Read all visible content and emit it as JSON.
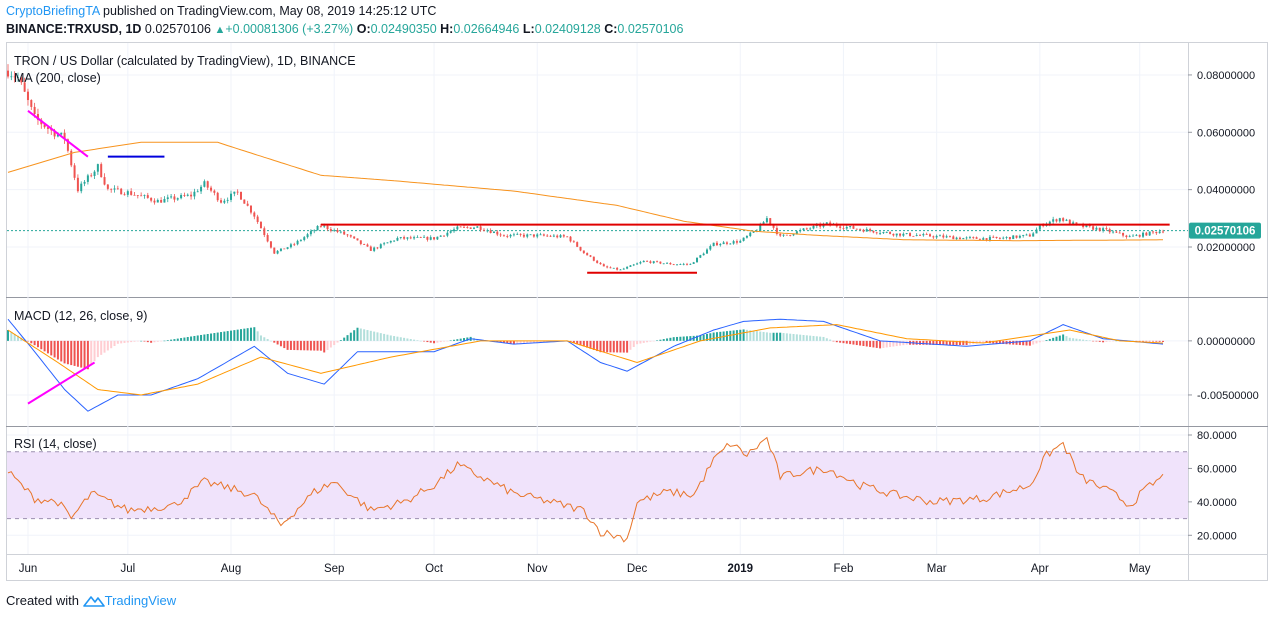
{
  "header": {
    "author": "CryptoBriefingTA",
    "published": "published on TradingView.com, May 08, 2019 14:25:12 UTC",
    "symbol": "BINANCE:TRXUSD, 1D",
    "last": "0.02570106",
    "change": "+0.00081306 (+3.27%)",
    "o_label": "O:",
    "o_value": "0.02490350",
    "h_label": "H:",
    "h_value": "0.02664946",
    "l_label": "L:",
    "l_value": "0.02409128",
    "c_label": "C:",
    "c_value": "0.02570106"
  },
  "footer": {
    "prefix": "Created with",
    "brand": "TradingView"
  },
  "colors": {
    "up": "#26a69a",
    "down": "#ef5350",
    "ma": "#f7931e",
    "macd": "#2962ff",
    "signal": "#ff9800",
    "rsi": "#e8752a",
    "rsi_band": "#f0e3fb",
    "trend_magenta": "#ff00ff",
    "trend_blue": "#0000dd",
    "trend_red": "#e00000",
    "price_label": "#26a69a"
  },
  "chart_data": [
    {
      "type": "candlestick",
      "title": "TRON / US Dollar (calculated by TradingView), 1D, BINANCE",
      "indicator": "MA (200, close)",
      "ylim": [
        0.005,
        0.088
      ],
      "y_ticks": [
        "0.08000000",
        "0.06000000",
        "0.04000000",
        "0.02000000"
      ],
      "x_ticks": [
        "Jun",
        "Jul",
        "Aug",
        "Sep",
        "Oct",
        "Nov",
        "Dec",
        "2019",
        "Feb",
        "Mar",
        "Apr",
        "May"
      ],
      "last_price_label": "0.02570106",
      "date_range": [
        "2018-05-26",
        "2019-05-08"
      ],
      "close_anchors": [
        [
          "2018-05-26",
          0.0815
        ],
        [
          "2018-05-29",
          0.079
        ],
        [
          "2018-06-03",
          0.065
        ],
        [
          "2018-06-08",
          0.0605
        ],
        [
          "2018-06-12",
          0.058
        ],
        [
          "2018-06-16",
          0.04
        ],
        [
          "2018-06-22",
          0.048
        ],
        [
          "2018-06-25",
          0.04
        ],
        [
          "2018-07-01",
          0.039
        ],
        [
          "2018-07-10",
          0.036
        ],
        [
          "2018-07-20",
          0.038
        ],
        [
          "2018-07-24",
          0.042
        ],
        [
          "2018-07-29",
          0.036
        ],
        [
          "2018-08-03",
          0.039
        ],
        [
          "2018-08-08",
          0.031
        ],
        [
          "2018-08-14",
          0.018
        ],
        [
          "2018-08-20",
          0.021
        ],
        [
          "2018-08-28",
          0.0275
        ],
        [
          "2018-09-05",
          0.024
        ],
        [
          "2018-09-12",
          0.019
        ],
        [
          "2018-09-20",
          0.023
        ],
        [
          "2018-10-01",
          0.023
        ],
        [
          "2018-10-08",
          0.0265
        ],
        [
          "2018-10-14",
          0.027
        ],
        [
          "2018-10-22",
          0.024
        ],
        [
          "2018-11-01",
          0.024
        ],
        [
          "2018-11-10",
          0.0235
        ],
        [
          "2018-11-15",
          0.018
        ],
        [
          "2018-11-21",
          0.013
        ],
        [
          "2018-11-26",
          0.012
        ],
        [
          "2018-12-03",
          0.015
        ],
        [
          "2018-12-12",
          0.014
        ],
        [
          "2018-12-17",
          0.014
        ],
        [
          "2018-12-24",
          0.021
        ],
        [
          "2019-01-01",
          0.022
        ],
        [
          "2019-01-06",
          0.026
        ],
        [
          "2019-01-09",
          0.03
        ],
        [
          "2019-01-13",
          0.0235
        ],
        [
          "2019-01-20",
          0.026
        ],
        [
          "2019-01-27",
          0.028
        ],
        [
          "2019-02-07",
          0.026
        ],
        [
          "2019-02-17",
          0.0245
        ],
        [
          "2019-02-25",
          0.024
        ],
        [
          "2019-03-10",
          0.023
        ],
        [
          "2019-03-20",
          0.023
        ],
        [
          "2019-03-29",
          0.024
        ],
        [
          "2019-04-02",
          0.028
        ],
        [
          "2019-04-07",
          0.03
        ],
        [
          "2019-04-12",
          0.0275
        ],
        [
          "2019-04-20",
          0.026
        ],
        [
          "2019-04-28",
          0.0235
        ],
        [
          "2019-05-08",
          0.0257
        ]
      ],
      "ma_anchors": [
        [
          "2018-05-26",
          0.046
        ],
        [
          "2018-06-15",
          0.053
        ],
        [
          "2018-07-05",
          0.0565
        ],
        [
          "2018-07-28",
          0.0565
        ],
        [
          "2018-08-05",
          0.0535
        ],
        [
          "2018-08-28",
          0.045
        ],
        [
          "2018-09-20",
          0.043
        ],
        [
          "2018-10-25",
          0.0395
        ],
        [
          "2018-11-25",
          0.0345
        ],
        [
          "2018-12-15",
          0.029
        ],
        [
          "2019-01-05",
          0.0255
        ],
        [
          "2019-01-25",
          0.024
        ],
        [
          "2019-02-20",
          0.0225
        ],
        [
          "2019-03-25",
          0.0222
        ],
        [
          "2019-05-08",
          0.0225
        ]
      ],
      "drawings": [
        {
          "color": "#ff00ff",
          "from": [
            "2018-06-01",
            0.0675
          ],
          "to": [
            "2018-06-19",
            0.0515
          ]
        },
        {
          "color": "#0000dd",
          "from": [
            "2018-06-25",
            0.0515
          ],
          "to": [
            "2018-07-12",
            0.0515
          ]
        },
        {
          "color": "#e00000",
          "from": [
            "2018-08-28",
            0.0278
          ],
          "to": [
            "2019-05-10",
            0.0278
          ]
        },
        {
          "color": "#e00000",
          "from": [
            "2018-11-16",
            0.011
          ],
          "to": [
            "2018-12-19",
            0.011
          ]
        }
      ]
    },
    {
      "type": "line",
      "title": "MACD (12, 26, close, 9)",
      "ylim": [
        -0.0075,
        0.0035
      ],
      "y_ticks": [
        "0.00000000",
        "-0.00500000"
      ],
      "series": [
        {
          "name": "MACD",
          "anchors": [
            [
              "2018-05-26",
              0.002
            ],
            [
              "2018-06-03",
              -0.001
            ],
            [
              "2018-06-12",
              -0.0045
            ],
            [
              "2018-06-19",
              -0.0065
            ],
            [
              "2018-06-28",
              -0.005
            ],
            [
              "2018-07-08",
              -0.005
            ],
            [
              "2018-07-22",
              -0.0035
            ],
            [
              "2018-08-08",
              -0.0005
            ],
            [
              "2018-08-18",
              -0.003
            ],
            [
              "2018-08-29",
              -0.004
            ],
            [
              "2018-09-08",
              -0.001
            ],
            [
              "2018-09-18",
              -0.001
            ],
            [
              "2018-10-01",
              -0.001
            ],
            [
              "2018-10-12",
              0.0002
            ],
            [
              "2018-10-25",
              -0.0003
            ],
            [
              "2018-11-10",
              0.0
            ],
            [
              "2018-11-20",
              -0.002
            ],
            [
              "2018-11-28",
              -0.0028
            ],
            [
              "2018-12-12",
              -0.0005
            ],
            [
              "2018-12-24",
              0.001
            ],
            [
              "2019-01-02",
              0.0018
            ],
            [
              "2019-01-13",
              0.002
            ],
            [
              "2019-01-26",
              0.0018
            ],
            [
              "2019-02-12",
              0.0
            ],
            [
              "2019-03-10",
              -0.0005
            ],
            [
              "2019-03-29",
              0.0
            ],
            [
              "2019-04-08",
              0.0015
            ],
            [
              "2019-04-20",
              0.0002
            ],
            [
              "2019-05-08",
              -0.0003
            ]
          ]
        },
        {
          "name": "Signal",
          "anchors": [
            [
              "2018-05-26",
              0.001
            ],
            [
              "2018-06-10",
              -0.002
            ],
            [
              "2018-06-22",
              -0.0045
            ],
            [
              "2018-07-05",
              -0.005
            ],
            [
              "2018-07-22",
              -0.004
            ],
            [
              "2018-08-10",
              -0.0015
            ],
            [
              "2018-08-28",
              -0.003
            ],
            [
              "2018-09-18",
              -0.0015
            ],
            [
              "2018-10-15",
              0.0
            ],
            [
              "2018-11-10",
              0.0
            ],
            [
              "2018-12-01",
              -0.002
            ],
            [
              "2018-12-20",
              0.0
            ],
            [
              "2019-01-10",
              0.0012
            ],
            [
              "2019-01-30",
              0.0015
            ],
            [
              "2019-02-20",
              0.0002
            ],
            [
              "2019-03-15",
              -0.0002
            ],
            [
              "2019-04-10",
              0.001
            ],
            [
              "2019-04-25",
              0.0
            ],
            [
              "2019-05-08",
              -0.0002
            ]
          ]
        }
      ]
    },
    {
      "type": "line",
      "title": "RSI (14, close)",
      "ylim": [
        10,
        83
      ],
      "y_ticks": [
        "80.0000",
        "60.0000",
        "40.0000",
        "20.0000"
      ],
      "bands": [
        30,
        70
      ],
      "anchors": [
        [
          "2018-05-26",
          58
        ],
        [
          "2018-06-03",
          42
        ],
        [
          "2018-06-10",
          40
        ],
        [
          "2018-06-14",
          30
        ],
        [
          "2018-06-20",
          45
        ],
        [
          "2018-07-01",
          35
        ],
        [
          "2018-07-15",
          38
        ],
        [
          "2018-07-24",
          52
        ],
        [
          "2018-08-01",
          48
        ],
        [
          "2018-08-08",
          44
        ],
        [
          "2018-08-16",
          26
        ],
        [
          "2018-08-26",
          46
        ],
        [
          "2018-09-01",
          52
        ],
        [
          "2018-09-12",
          35
        ],
        [
          "2018-09-22",
          40
        ],
        [
          "2018-10-01",
          50
        ],
        [
          "2018-10-08",
          62
        ],
        [
          "2018-10-15",
          55
        ],
        [
          "2018-10-25",
          45
        ],
        [
          "2018-11-05",
          40
        ],
        [
          "2018-11-15",
          35
        ],
        [
          "2018-11-20",
          22
        ],
        [
          "2018-11-28",
          18
        ],
        [
          "2018-12-01",
          40
        ],
        [
          "2018-12-10",
          46
        ],
        [
          "2018-12-18",
          44
        ],
        [
          "2018-12-24",
          65
        ],
        [
          "2018-12-29",
          75
        ],
        [
          "2019-01-03",
          68
        ],
        [
          "2019-01-09",
          78
        ],
        [
          "2019-01-13",
          55
        ],
        [
          "2019-01-20",
          58
        ],
        [
          "2019-01-27",
          60
        ],
        [
          "2019-02-06",
          50
        ],
        [
          "2019-02-17",
          44
        ],
        [
          "2019-02-28",
          40
        ],
        [
          "2019-03-15",
          42
        ],
        [
          "2019-03-29",
          50
        ],
        [
          "2019-04-03",
          68
        ],
        [
          "2019-04-08",
          75
        ],
        [
          "2019-04-13",
          55
        ],
        [
          "2019-04-23",
          45
        ],
        [
          "2019-04-28",
          38
        ],
        [
          "2019-05-03",
          48
        ],
        [
          "2019-05-08",
          55
        ]
      ],
      "drawings": [
        {
          "color": "#ff00ff",
          "pane": "macd",
          "from": [
            "2018-06-01",
            -0.0058
          ],
          "to": [
            "2018-06-21",
            -0.002
          ]
        }
      ]
    }
  ]
}
